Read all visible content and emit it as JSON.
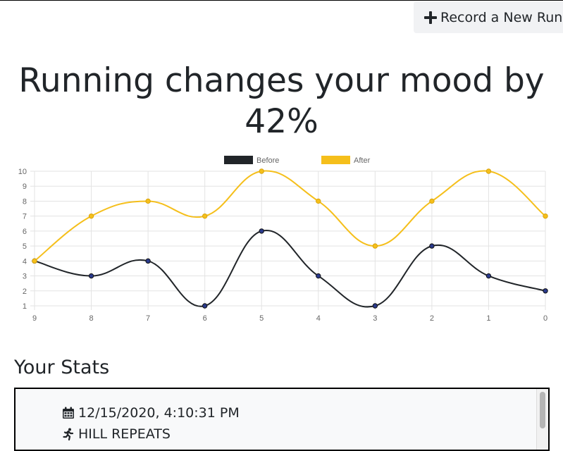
{
  "header": {
    "record_button_label": "Record a New Run"
  },
  "headline": {
    "line1": "Running changes your mood by",
    "line2": "42%"
  },
  "chart_data": {
    "type": "line",
    "categories": [
      "9",
      "8",
      "7",
      "6",
      "5",
      "4",
      "3",
      "2",
      "1",
      "0"
    ],
    "series": [
      {
        "name": "Before",
        "values": [
          4,
          3,
          4,
          1,
          6,
          3,
          1,
          5,
          3,
          2
        ],
        "color": "#212529",
        "point_color": "#2a3a8c"
      },
      {
        "name": "After",
        "values": [
          4,
          7,
          8,
          7,
          10,
          8,
          5,
          8,
          10,
          7
        ],
        "color": "#f5bf1b",
        "point_color": "#f5bf1b"
      }
    ],
    "y_ticks": [
      "1",
      "2",
      "3",
      "4",
      "5",
      "6",
      "7",
      "8",
      "9",
      "10"
    ],
    "ylim": [
      1,
      10
    ],
    "grid": true,
    "legend": "top-center",
    "smooth": true
  },
  "stats": {
    "title": "Your Stats",
    "entries": [
      {
        "date": "12/15/2020, 4:10:31 PM",
        "workout": "HILL REPEATS"
      }
    ]
  }
}
